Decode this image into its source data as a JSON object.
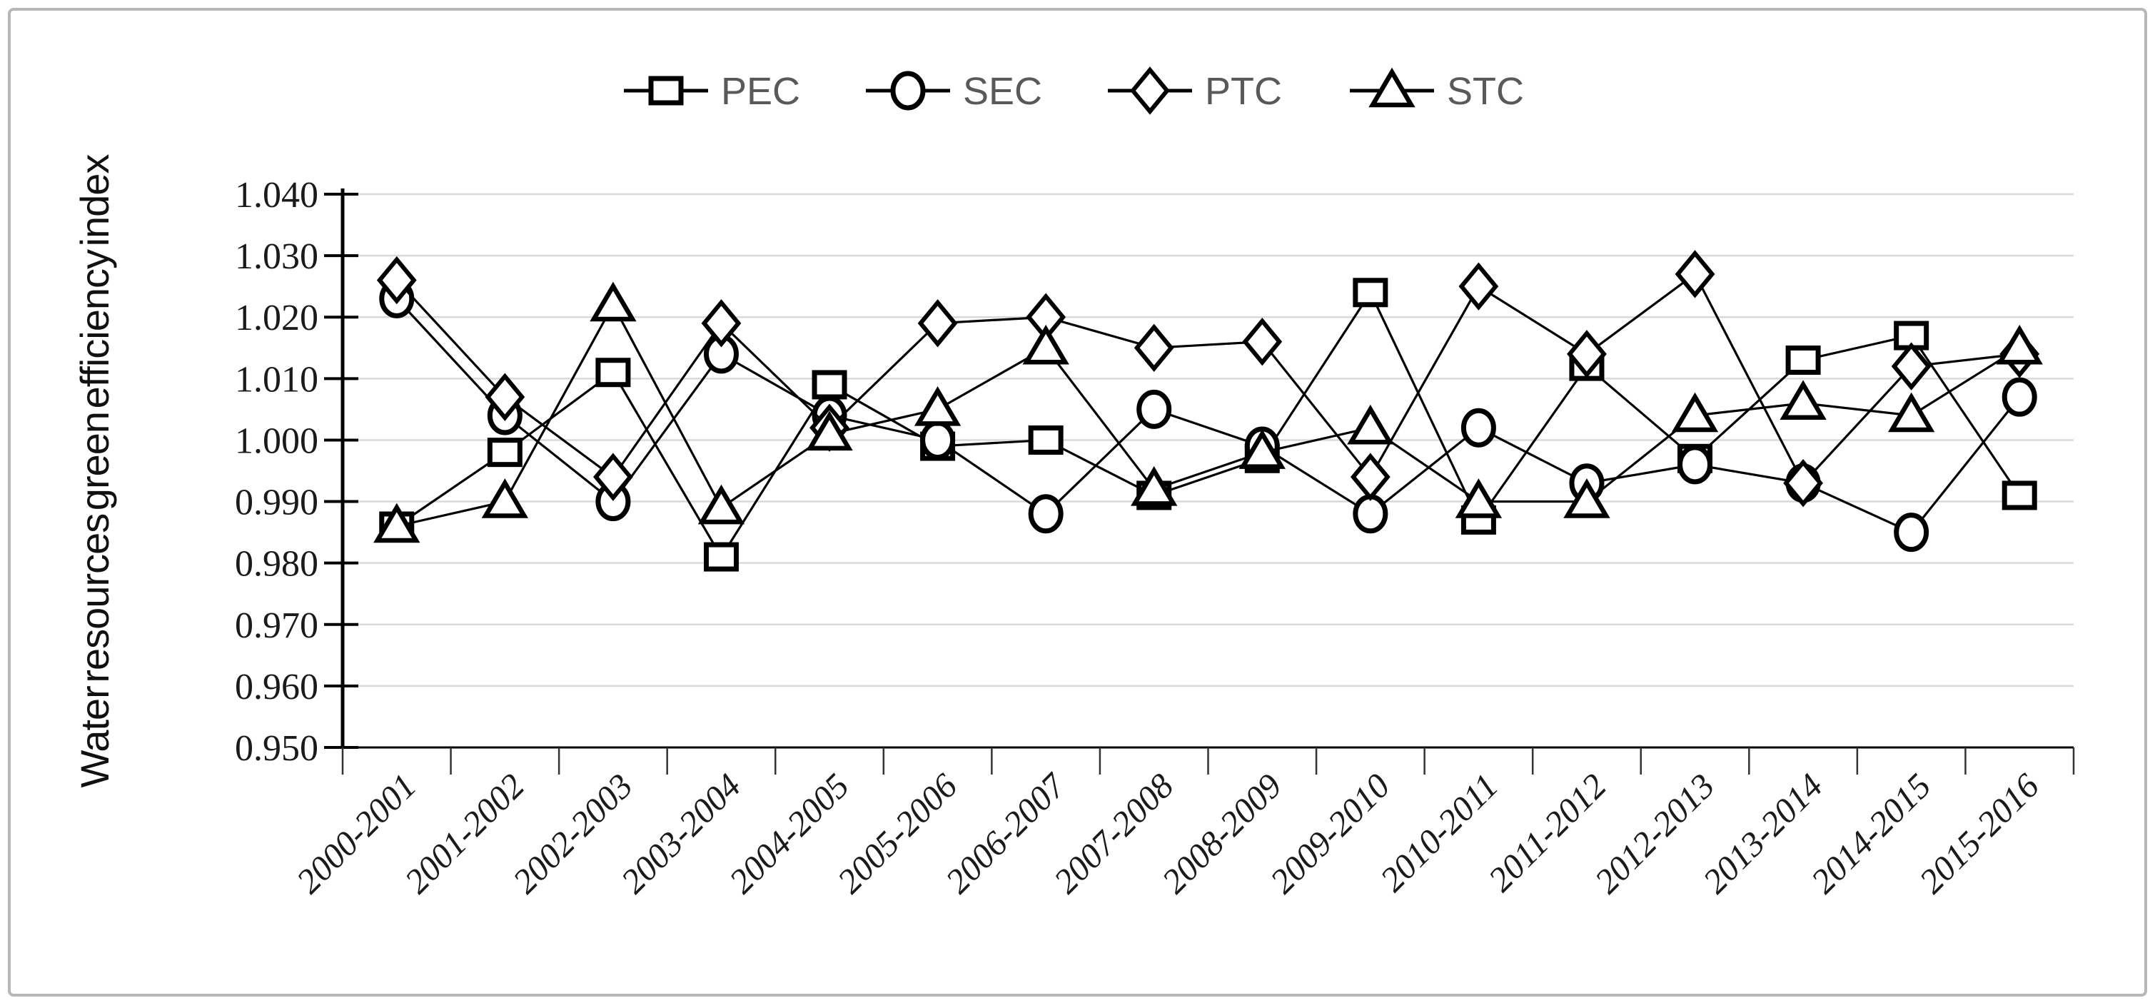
{
  "figure": {
    "background": "#ffffff",
    "border_color": "#b7b7b7"
  },
  "chart_data": {
    "type": "line",
    "title": "",
    "xlabel": "",
    "ylabel": "Water resources green efficiency index",
    "ylim": [
      0.95,
      1.04
    ],
    "ytick_step": 0.01,
    "yticks": [
      "1.040",
      "1.030",
      "1.020",
      "1.010",
      "1.000",
      "0.990",
      "0.980",
      "0.970",
      "0.960",
      "0.950"
    ],
    "grid": "horizontal",
    "gridline_color": "#d9d9d9",
    "axis_color": "#000000",
    "line_color": "#000000",
    "marker_fill": "#ffffff",
    "legend_position": "top-center",
    "legend_text_color": "#595959",
    "categories": [
      "2000-2001",
      "2001-2002",
      "2002-2003",
      "2003-2004",
      "2004-2005",
      "2005-2006",
      "2006-2007",
      "2007-2008",
      "2008-2009",
      "2009-2010",
      "2010-2011",
      "2011-2012",
      "2012-2013",
      "2013-2014",
      "2014-2015",
      "2015-2016"
    ],
    "series": [
      {
        "name": "PEC",
        "marker": "square",
        "values": [
          0.986,
          0.998,
          1.011,
          0.981,
          1.009,
          0.999,
          1.0,
          0.991,
          0.997,
          1.024,
          0.987,
          1.012,
          0.997,
          1.013,
          1.017,
          0.991
        ]
      },
      {
        "name": "SEC",
        "marker": "circle",
        "values": [
          1.023,
          1.004,
          0.99,
          1.014,
          1.004,
          1.0,
          0.988,
          1.005,
          0.999,
          0.988,
          1.002,
          0.993,
          0.996,
          0.993,
          0.985,
          1.007
        ]
      },
      {
        "name": "PTC",
        "marker": "diamond",
        "values": [
          1.026,
          1.007,
          0.994,
          1.019,
          1.002,
          1.019,
          1.02,
          1.015,
          1.016,
          0.994,
          1.025,
          1.014,
          1.027,
          0.993,
          1.012,
          1.014
        ]
      },
      {
        "name": "STC",
        "marker": "triangle",
        "values": [
          0.986,
          0.99,
          1.022,
          0.989,
          1.001,
          1.005,
          1.015,
          0.992,
          0.998,
          1.002,
          0.99,
          0.99,
          1.004,
          1.006,
          1.004,
          1.015
        ]
      }
    ]
  }
}
